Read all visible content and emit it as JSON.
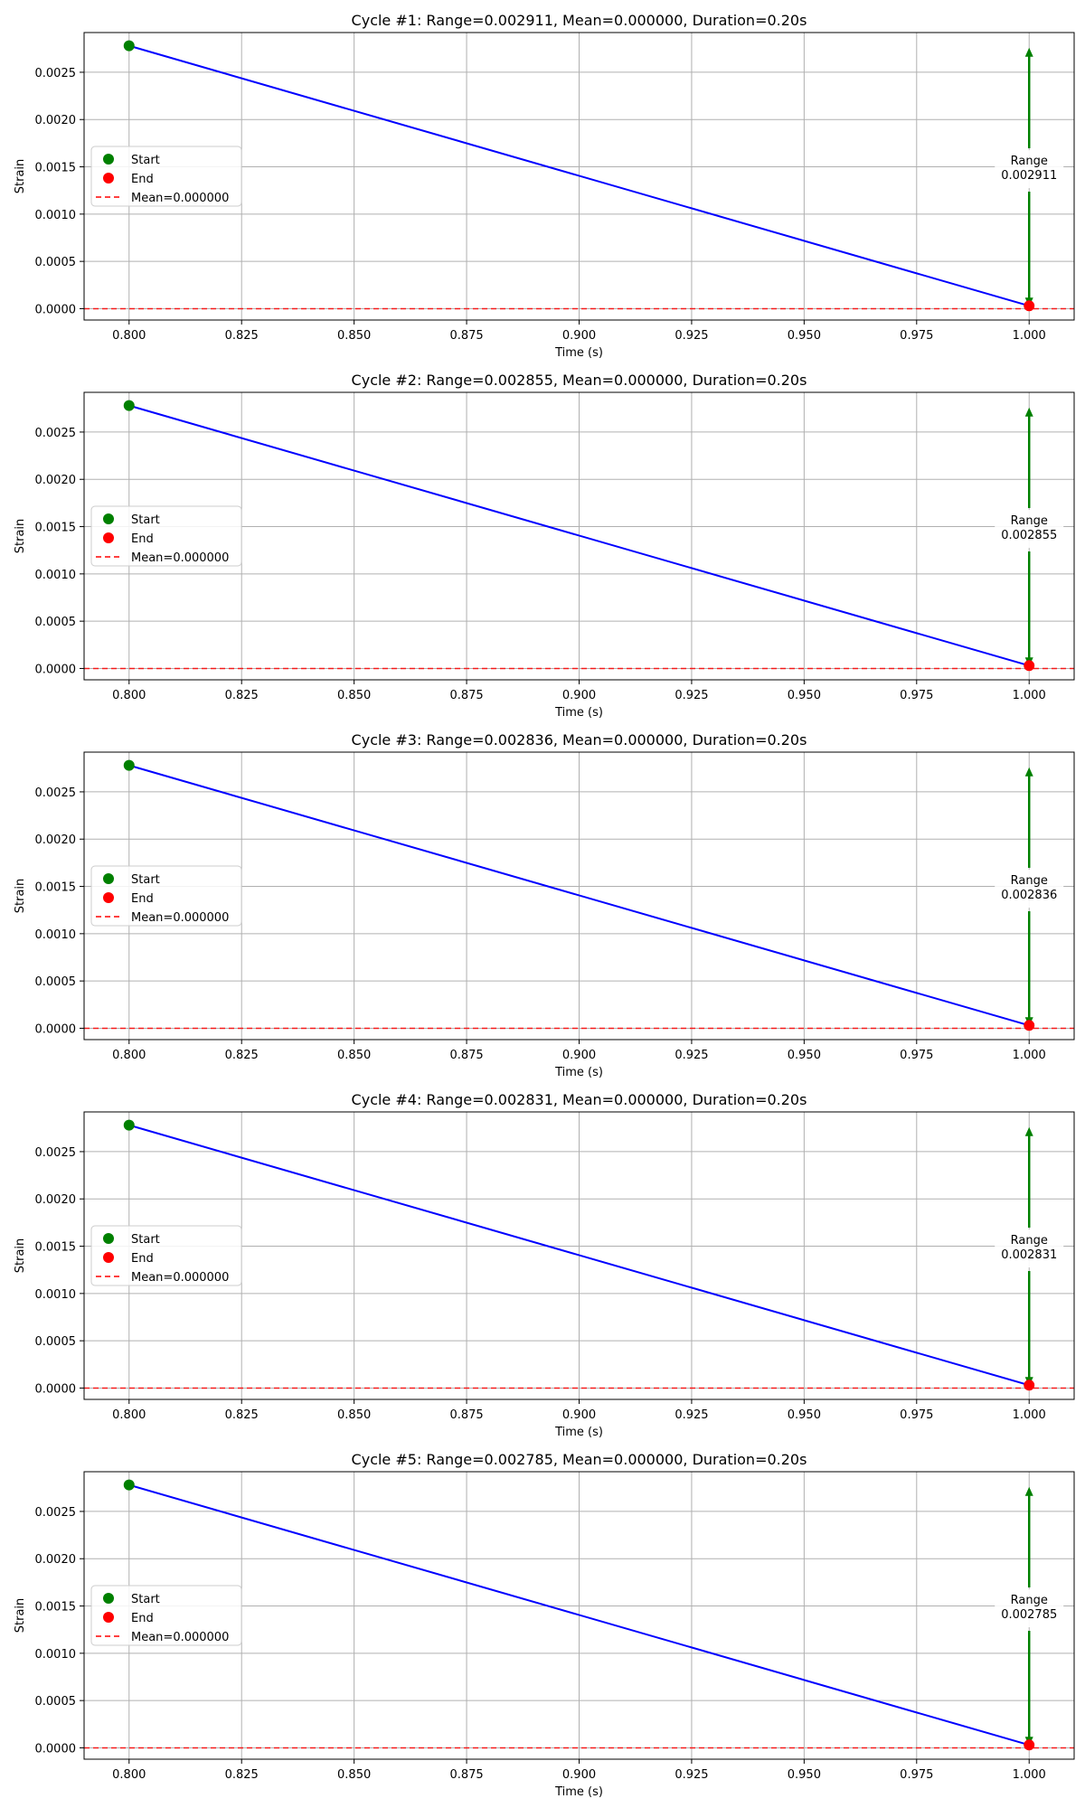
{
  "chart_data": [
    {
      "type": "line",
      "title": "Cycle #1: Range=0.002911, Mean=0.000000, Duration=0.20s",
      "xlabel": "Time (s)",
      "ylabel": "Strain",
      "xlim": [
        0.79,
        1.01
      ],
      "ylim": [
        -0.00012,
        0.00292
      ],
      "xticks": [
        0.8,
        0.825,
        0.85,
        0.875,
        0.9,
        0.925,
        0.95,
        0.975,
        1.0
      ],
      "xtick_labels": [
        "0.800",
        "0.825",
        "0.850",
        "0.875",
        "0.900",
        "0.925",
        "0.950",
        "0.975",
        "1.000"
      ],
      "yticks": [
        0,
        0.0005,
        0.001,
        0.0015,
        0.002,
        0.0025
      ],
      "ytick_labels": [
        "0.0000",
        "0.0005",
        "0.0010",
        "0.0015",
        "0.0020",
        "0.0025"
      ],
      "grid": true,
      "legend_position": "center-left",
      "series": [
        {
          "name": "",
          "x": [
            0.8,
            1.0
          ],
          "y": [
            0.00278,
            3e-05
          ],
          "color": "#0000ff"
        }
      ],
      "start_point": {
        "x": 0.8,
        "y": 0.00278,
        "label": "Start",
        "color": "#008000"
      },
      "end_point": {
        "x": 1.0,
        "y": 3e-05,
        "label": "End",
        "color": "#ff0000"
      },
      "mean_line": {
        "y": 0.0,
        "label": "Mean=0.000000",
        "color": "#ff0000"
      },
      "range_annotation": {
        "x": 1.0,
        "y_from": 3e-05,
        "y_to": 0.00275,
        "line1": "Range",
        "line2": "0.002911",
        "color": "#008000"
      }
    },
    {
      "type": "line",
      "title": "Cycle #2: Range=0.002855, Mean=0.000000, Duration=0.20s",
      "xlabel": "Time (s)",
      "ylabel": "Strain",
      "xlim": [
        0.79,
        1.01
      ],
      "ylim": [
        -0.00012,
        0.00292
      ],
      "xticks": [
        0.8,
        0.825,
        0.85,
        0.875,
        0.9,
        0.925,
        0.95,
        0.975,
        1.0
      ],
      "xtick_labels": [
        "0.800",
        "0.825",
        "0.850",
        "0.875",
        "0.900",
        "0.925",
        "0.950",
        "0.975",
        "1.000"
      ],
      "yticks": [
        0,
        0.0005,
        0.001,
        0.0015,
        0.002,
        0.0025
      ],
      "ytick_labels": [
        "0.0000",
        "0.0005",
        "0.0010",
        "0.0015",
        "0.0020",
        "0.0025"
      ],
      "grid": true,
      "legend_position": "center-left",
      "series": [
        {
          "name": "",
          "x": [
            0.8,
            1.0
          ],
          "y": [
            0.00278,
            3e-05
          ],
          "color": "#0000ff"
        }
      ],
      "start_point": {
        "x": 0.8,
        "y": 0.00278,
        "label": "Start",
        "color": "#008000"
      },
      "end_point": {
        "x": 1.0,
        "y": 3e-05,
        "label": "End",
        "color": "#ff0000"
      },
      "mean_line": {
        "y": 0.0,
        "label": "Mean=0.000000",
        "color": "#ff0000"
      },
      "range_annotation": {
        "x": 1.0,
        "y_from": 3e-05,
        "y_to": 0.00275,
        "line1": "Range",
        "line2": "0.002855",
        "color": "#008000"
      }
    },
    {
      "type": "line",
      "title": "Cycle #3: Range=0.002836, Mean=0.000000, Duration=0.20s",
      "xlabel": "Time (s)",
      "ylabel": "Strain",
      "xlim": [
        0.79,
        1.01
      ],
      "ylim": [
        -0.00012,
        0.00292
      ],
      "xticks": [
        0.8,
        0.825,
        0.85,
        0.875,
        0.9,
        0.925,
        0.95,
        0.975,
        1.0
      ],
      "xtick_labels": [
        "0.800",
        "0.825",
        "0.850",
        "0.875",
        "0.900",
        "0.925",
        "0.950",
        "0.975",
        "1.000"
      ],
      "yticks": [
        0,
        0.0005,
        0.001,
        0.0015,
        0.002,
        0.0025
      ],
      "ytick_labels": [
        "0.0000",
        "0.0005",
        "0.0010",
        "0.0015",
        "0.0020",
        "0.0025"
      ],
      "grid": true,
      "legend_position": "center-left",
      "series": [
        {
          "name": "",
          "x": [
            0.8,
            1.0
          ],
          "y": [
            0.00278,
            3e-05
          ],
          "color": "#0000ff"
        }
      ],
      "start_point": {
        "x": 0.8,
        "y": 0.00278,
        "label": "Start",
        "color": "#008000"
      },
      "end_point": {
        "x": 1.0,
        "y": 3e-05,
        "label": "End",
        "color": "#ff0000"
      },
      "mean_line": {
        "y": 0.0,
        "label": "Mean=0.000000",
        "color": "#ff0000"
      },
      "range_annotation": {
        "x": 1.0,
        "y_from": 3e-05,
        "y_to": 0.00275,
        "line1": "Range",
        "line2": "0.002836",
        "color": "#008000"
      }
    },
    {
      "type": "line",
      "title": "Cycle #4: Range=0.002831, Mean=0.000000, Duration=0.20s",
      "xlabel": "Time (s)",
      "ylabel": "Strain",
      "xlim": [
        0.79,
        1.01
      ],
      "ylim": [
        -0.00012,
        0.00292
      ],
      "xticks": [
        0.8,
        0.825,
        0.85,
        0.875,
        0.9,
        0.925,
        0.95,
        0.975,
        1.0
      ],
      "xtick_labels": [
        "0.800",
        "0.825",
        "0.850",
        "0.875",
        "0.900",
        "0.925",
        "0.950",
        "0.975",
        "1.000"
      ],
      "yticks": [
        0,
        0.0005,
        0.001,
        0.0015,
        0.002,
        0.0025
      ],
      "ytick_labels": [
        "0.0000",
        "0.0005",
        "0.0010",
        "0.0015",
        "0.0020",
        "0.0025"
      ],
      "grid": true,
      "legend_position": "center-left",
      "series": [
        {
          "name": "",
          "x": [
            0.8,
            1.0
          ],
          "y": [
            0.00278,
            3e-05
          ],
          "color": "#0000ff"
        }
      ],
      "start_point": {
        "x": 0.8,
        "y": 0.00278,
        "label": "Start",
        "color": "#008000"
      },
      "end_point": {
        "x": 1.0,
        "y": 3e-05,
        "label": "End",
        "color": "#ff0000"
      },
      "mean_line": {
        "y": 0.0,
        "label": "Mean=0.000000",
        "color": "#ff0000"
      },
      "range_annotation": {
        "x": 1.0,
        "y_from": 3e-05,
        "y_to": 0.00275,
        "line1": "Range",
        "line2": "0.002831",
        "color": "#008000"
      }
    },
    {
      "type": "line",
      "title": "Cycle #5: Range=0.002785, Mean=0.000000, Duration=0.20s",
      "xlabel": "Time (s)",
      "ylabel": "Strain",
      "xlim": [
        0.79,
        1.01
      ],
      "ylim": [
        -0.00012,
        0.00292
      ],
      "xticks": [
        0.8,
        0.825,
        0.85,
        0.875,
        0.9,
        0.925,
        0.95,
        0.975,
        1.0
      ],
      "xtick_labels": [
        "0.800",
        "0.825",
        "0.850",
        "0.875",
        "0.900",
        "0.925",
        "0.950",
        "0.975",
        "1.000"
      ],
      "yticks": [
        0,
        0.0005,
        0.001,
        0.0015,
        0.002,
        0.0025
      ],
      "ytick_labels": [
        "0.0000",
        "0.0005",
        "0.0010",
        "0.0015",
        "0.0020",
        "0.0025"
      ],
      "grid": true,
      "legend_position": "center-left",
      "series": [
        {
          "name": "",
          "x": [
            0.8,
            1.0
          ],
          "y": [
            0.00278,
            3e-05
          ],
          "color": "#0000ff"
        }
      ],
      "start_point": {
        "x": 0.8,
        "y": 0.00278,
        "label": "Start",
        "color": "#008000"
      },
      "end_point": {
        "x": 1.0,
        "y": 3e-05,
        "label": "End",
        "color": "#ff0000"
      },
      "mean_line": {
        "y": 0.0,
        "label": "Mean=0.000000",
        "color": "#ff0000"
      },
      "range_annotation": {
        "x": 1.0,
        "y_from": 3e-05,
        "y_to": 0.00275,
        "line1": "Range",
        "line2": "0.002785",
        "color": "#008000"
      }
    }
  ]
}
